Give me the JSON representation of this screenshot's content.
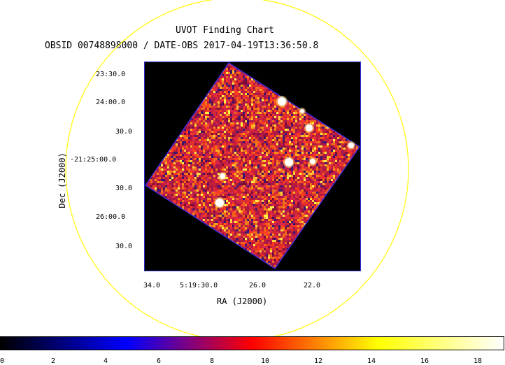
{
  "chart_data": {
    "type": "heatmap",
    "title": "UVOT Finding Chart",
    "subtitle": "OBSID 00748898000 / DATE-OBS 2017-04-19T13:36:50.8",
    "xlabel": "RA (J2000)",
    "ylabel": "Dec (J2000)",
    "x_tick_labels": [
      "34.0",
      "5:19:30.0",
      "26.0",
      "22.0"
    ],
    "y_tick_labels": [
      "23:30.0",
      "24:00.0",
      "30.0",
      "-21:25:00.0",
      "30.0",
      "26:00.0",
      "30.0"
    ],
    "colorbar": {
      "range": [
        0,
        19
      ],
      "tick_labels": [
        "0",
        "2",
        "4",
        "6",
        "8",
        "10",
        "12",
        "14",
        "16",
        "18"
      ],
      "colors": [
        "#000000",
        "#0000ff",
        "#ff0000",
        "#ffff00",
        "#ffffff"
      ]
    },
    "bright_sources": 8,
    "circle_color": "#ffff00"
  }
}
